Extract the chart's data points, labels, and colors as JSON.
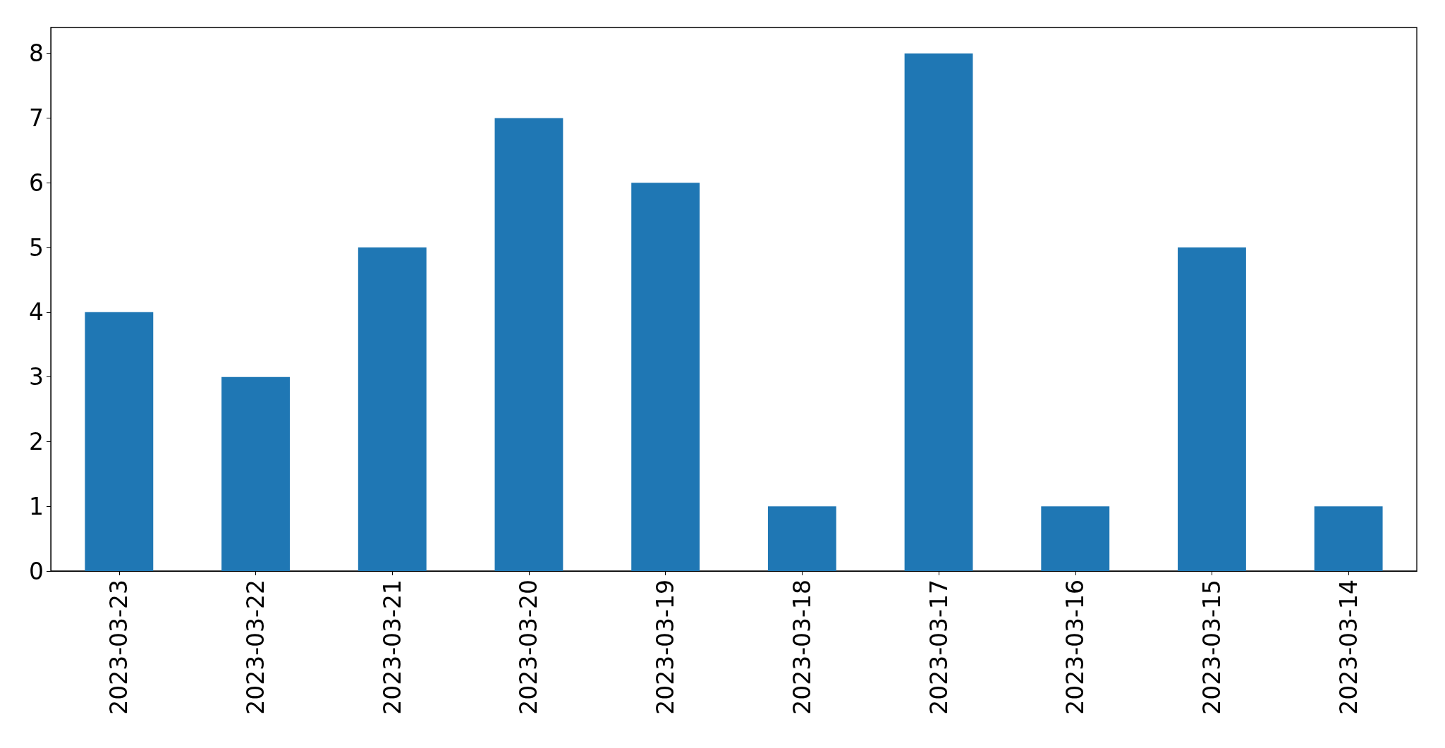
{
  "chart_data": {
    "type": "bar",
    "categories": [
      "2023-03-23",
      "2023-03-22",
      "2023-03-21",
      "2023-03-20",
      "2023-03-19",
      "2023-03-18",
      "2023-03-17",
      "2023-03-16",
      "2023-03-15",
      "2023-03-14"
    ],
    "values": [
      4,
      3,
      5,
      7,
      6,
      1,
      8,
      1,
      5,
      1
    ],
    "color": "#1f77b4",
    "ylim": [
      0,
      8.4
    ],
    "yticks": [
      0,
      1,
      2,
      3,
      4,
      5,
      6,
      7,
      8
    ],
    "grid": false
  }
}
